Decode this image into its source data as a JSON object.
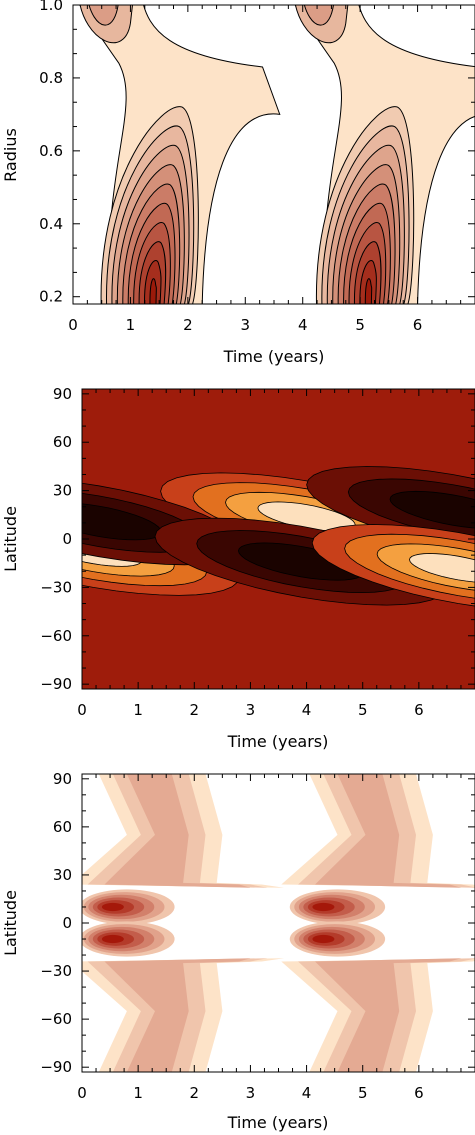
{
  "chart_data": [
    {
      "type": "heatmap",
      "subtype": "filled-contour",
      "xlabel": "Time (years)",
      "ylabel": "Radius",
      "xlim": [
        0,
        7
      ],
      "ylim": [
        0.18,
        1.0
      ],
      "xticks": [
        0,
        1,
        2,
        3,
        4,
        5,
        6
      ],
      "yticks": [
        0.2,
        0.4,
        0.6,
        0.8,
        1.0
      ],
      "ytick_labels": [
        "0.2",
        "0.4",
        "0.6",
        "0.8",
        "1.0"
      ],
      "period": 3.75,
      "contour_levels": 10,
      "color_low": "#fde3c8",
      "color_high": "#9b1a0a",
      "features": [
        {
          "x": 1.4,
          "y": 0.24,
          "peak": 1.0
        },
        {
          "x": 5.15,
          "y": 0.24,
          "peak": 1.0
        }
      ]
    },
    {
      "type": "heatmap",
      "subtype": "filled-contour",
      "xlabel": "Time (years)",
      "ylabel": "Latitude",
      "xlim": [
        0,
        7
      ],
      "ylim": [
        -93,
        93
      ],
      "xticks": [
        0,
        1,
        2,
        3,
        4,
        5,
        6
      ],
      "yticks": [
        -90,
        -60,
        -30,
        0,
        30,
        60,
        90
      ],
      "ytick_labels": [
        "−90",
        "−60",
        "−30",
        "0",
        "30",
        "60",
        "90"
      ],
      "background": "#9e1c0b",
      "color_dark": "#1a0300",
      "color_light": "#fde0bd",
      "features": [
        {
          "x": 4.0,
          "y": 14,
          "sign": "positive"
        },
        {
          "x": 0.2,
          "y": -8,
          "sign": "positive"
        },
        {
          "x": 0.3,
          "y": 11,
          "sign": "negative"
        },
        {
          "x": 3.9,
          "y": -14,
          "sign": "negative"
        },
        {
          "x": 6.6,
          "y": 18,
          "sign": "negative"
        },
        {
          "x": 6.7,
          "y": -18,
          "sign": "positive"
        }
      ]
    },
    {
      "type": "heatmap",
      "subtype": "filled-contour",
      "xlabel": "Time (years)",
      "ylabel": "Latitude",
      "xlim": [
        0,
        7
      ],
      "ylim": [
        -93,
        93
      ],
      "xticks": [
        0,
        1,
        2,
        3,
        4,
        5,
        6
      ],
      "yticks": [
        -90,
        -60,
        -30,
        0,
        30,
        60,
        90
      ],
      "ytick_labels": [
        "−90",
        "−60",
        "−30",
        "0",
        "30",
        "60",
        "90"
      ],
      "period": 3.75,
      "color_low": "#fde3c8",
      "color_high": "#a5180a",
      "features": [
        {
          "x": 0.8,
          "y": 10,
          "peak": 1.0
        },
        {
          "x": 0.8,
          "y": -10,
          "peak": 1.0
        },
        {
          "x": 4.55,
          "y": 10,
          "peak": 1.0
        },
        {
          "x": 4.55,
          "y": -10,
          "peak": 1.0
        }
      ]
    }
  ]
}
